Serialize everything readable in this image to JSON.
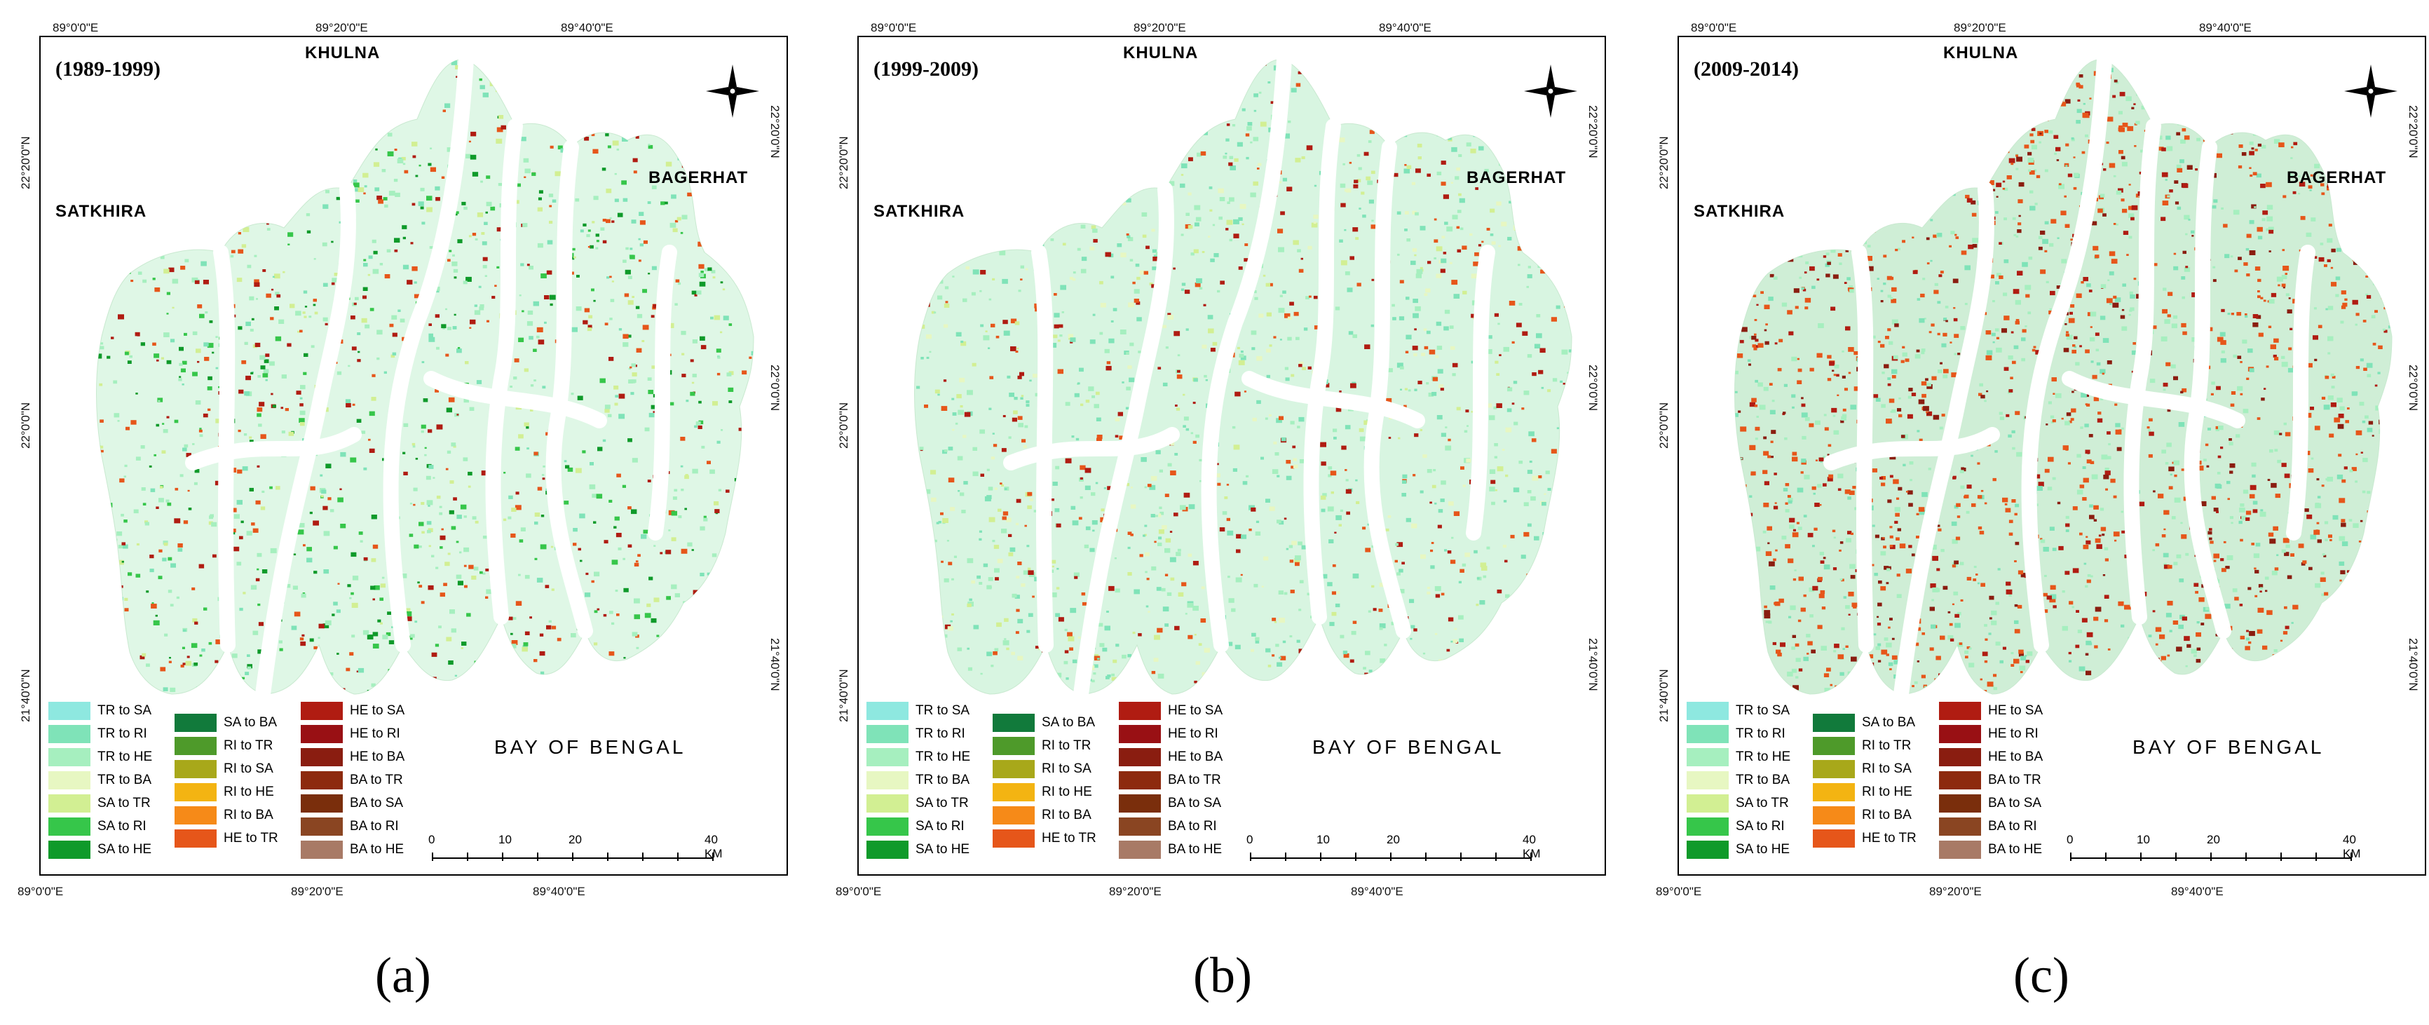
{
  "panels": [
    {
      "id": "a",
      "period": "(1989-1999)",
      "caption": "(a)",
      "places": {
        "north": "KHULNA",
        "west": "SATKHIRA",
        "east": "BAGERHAT",
        "sea": "BAY OF BENGAL"
      },
      "lon_top": [
        "89°0'0\"E",
        "89°20'0\"E",
        "89°40'0\"E"
      ],
      "lon_bottom": [
        "89°0'0\"E",
        "89°20'0\"E",
        "89°40'0\"E"
      ],
      "lat_left": [
        "22°20'0\"N",
        "22°0'0\"N",
        "21°40'0\"N"
      ],
      "lat_right": [
        "22°20'0\"N",
        "22°0'0\"N",
        "21°40'0\"N"
      ],
      "scale": {
        "ticks": [
          "0",
          "10",
          "20",
          "40 KM"
        ]
      },
      "dominant_change": "green"
    },
    {
      "id": "b",
      "period": "(1999-2009)",
      "caption": "(b)",
      "places": {
        "north": "KHULNA",
        "west": "SATKHIRA",
        "east": "BAGERHAT",
        "sea": "BAY OF BENGAL"
      },
      "lon_top": [
        "89°0'0\"E",
        "89°20'0\"E",
        "89°40'0\"E"
      ],
      "lon_bottom": [
        "89°0'0\"E",
        "89°20'0\"E",
        "89°40'0\"E"
      ],
      "lat_left": [
        "22°20'0\"N",
        "22°0'0\"N",
        "21°40'0\"N"
      ],
      "lat_right": [
        "22°20'0\"N",
        "22°0'0\"N",
        "21°40'0\"N"
      ],
      "scale": {
        "ticks": [
          "0",
          "10",
          "20",
          "40 KM"
        ]
      },
      "dominant_change": "light-green"
    },
    {
      "id": "c",
      "period": "(2009-2014)",
      "caption": "(c)",
      "places": {
        "north": "KHULNA",
        "west": "SATKHIRA",
        "east": "BAGERHAT",
        "sea": "BAY OF BENGAL"
      },
      "lon_top": [
        "89°0'0\"E",
        "89°20'0\"E",
        "89°40'0\"E"
      ],
      "lon_bottom": [
        "89°0'0\"E",
        "89°20'0\"E",
        "89°40'0\"E"
      ],
      "lat_left": [
        "22°20'0\"N",
        "22°0'0\"N",
        "21°40'0\"N"
      ],
      "lat_right": [
        "22°20'0\"N",
        "22°0'0\"N",
        "21°40'0\"N"
      ],
      "scale": {
        "ticks": [
          "0",
          "10",
          "20",
          "40 KM"
        ]
      },
      "dominant_change": "orange-red"
    }
  ],
  "legend": [
    {
      "label": "TR to SA",
      "color": "#8ee8e0"
    },
    {
      "label": "TR to RI",
      "color": "#7fe3b8"
    },
    {
      "label": "TR to HE",
      "color": "#a6efbf"
    },
    {
      "label": "TR to BA",
      "color": "#e7f7c2"
    },
    {
      "label": "SA to TR",
      "color": "#d2ef93"
    },
    {
      "label": "SA to RI",
      "color": "#36c64a"
    },
    {
      "label": "SA to HE",
      "color": "#0f9a2a"
    },
    {
      "label": "SA to BA",
      "color": "#117a3b"
    },
    {
      "label": "RI to TR",
      "color": "#4e9a2a"
    },
    {
      "label": "RI to SA",
      "color": "#a8a81a"
    },
    {
      "label": "RI to HE",
      "color": "#f3b412"
    },
    {
      "label": "RI to BA",
      "color": "#f68a18"
    },
    {
      "label": "HE to TR",
      "color": "#e6561a"
    },
    {
      "label": "HE to SA",
      "color": "#b01c12"
    },
    {
      "label": "HE to RI",
      "color": "#991014"
    },
    {
      "label": "HE to BA",
      "color": "#8a1d10"
    },
    {
      "label": "BA to TR",
      "color": "#8d2a0e"
    },
    {
      "label": "BA to SA",
      "color": "#7a2e0c"
    },
    {
      "label": "BA to RI",
      "color": "#8a4522"
    },
    {
      "label": "BA to HE",
      "color": "#a87a66"
    }
  ]
}
